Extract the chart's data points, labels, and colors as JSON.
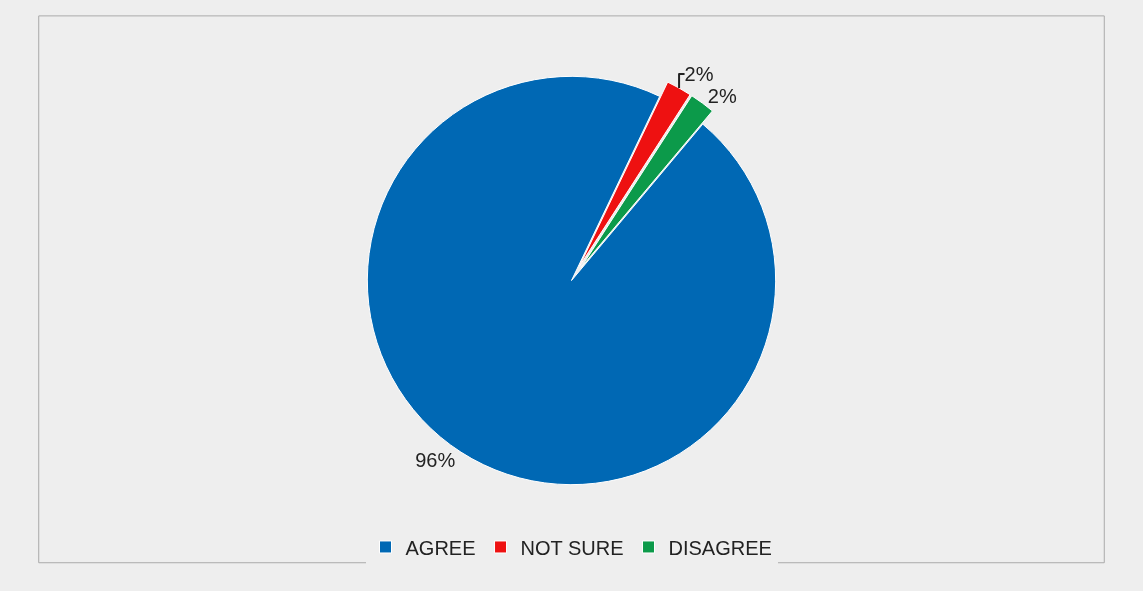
{
  "chart_data": {
    "type": "pie",
    "categories": [
      "AGREE",
      "NOT SURE",
      "DISAGREE"
    ],
    "values": [
      96,
      2,
      2
    ],
    "colors": [
      "#0068b4",
      "#ee1111",
      "#0c9a4a"
    ],
    "value_labels": [
      "96%",
      "2%",
      "2%"
    ],
    "legend": "bottom"
  }
}
